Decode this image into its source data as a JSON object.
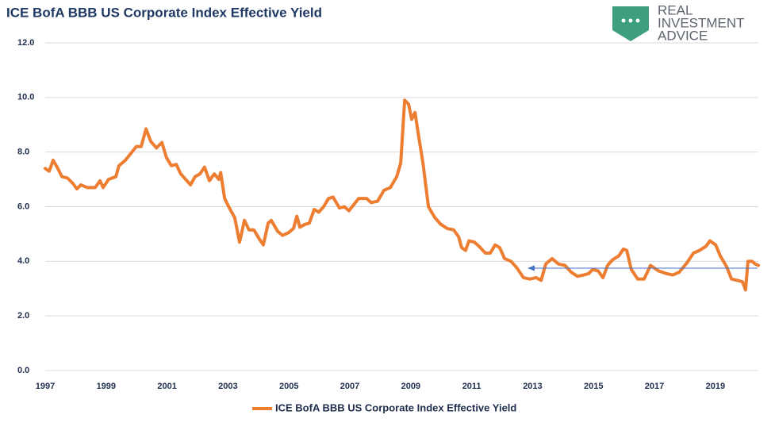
{
  "logo": {
    "line1": "REAL",
    "line2": "INVESTMENT",
    "line3": "ADVICE"
  },
  "chart_data": {
    "type": "line",
    "title": "ICE BofA BBB US Corporate Index Effective Yield",
    "x": [
      1997.0,
      1997.13,
      1997.26,
      1997.39,
      1997.55,
      1997.73,
      1997.91,
      1998.04,
      1998.17,
      1998.38,
      1998.64,
      1998.8,
      1998.9,
      1999.08,
      1999.32,
      1999.42,
      1999.63,
      1999.81,
      1999.99,
      2000.15,
      2000.31,
      2000.46,
      2000.65,
      2000.83,
      2000.98,
      2001.14,
      2001.3,
      2001.45,
      2001.61,
      2001.77,
      2001.92,
      2002.08,
      2002.23,
      2002.39,
      2002.55,
      2002.7,
      2002.76,
      2002.89,
      2003.07,
      2003.22,
      2003.38,
      2003.54,
      2003.69,
      2003.85,
      2004.01,
      2004.16,
      2004.32,
      2004.42,
      2004.63,
      2004.79,
      2004.99,
      2005.15,
      2005.26,
      2005.36,
      2005.52,
      2005.67,
      2005.83,
      2005.98,
      2006.14,
      2006.3,
      2006.45,
      2006.66,
      2006.82,
      2006.97,
      2007.29,
      2007.55,
      2007.7,
      2007.91,
      2008.12,
      2008.33,
      2008.54,
      2008.67,
      2008.8,
      2008.93,
      2009.03,
      2009.14,
      2009.27,
      2009.4,
      2009.58,
      2009.79,
      2009.99,
      2010.2,
      2010.41,
      2010.57,
      2010.67,
      2010.8,
      2010.91,
      2011.09,
      2011.24,
      2011.45,
      2011.61,
      2011.77,
      2011.92,
      2012.08,
      2012.29,
      2012.49,
      2012.7,
      2012.91,
      2013.12,
      2013.28,
      2013.43,
      2013.64,
      2013.85,
      2014.06,
      2014.27,
      2014.47,
      2014.68,
      2014.84,
      2014.97,
      2015.15,
      2015.31,
      2015.46,
      2015.62,
      2015.83,
      2015.98,
      2016.09,
      2016.24,
      2016.45,
      2016.66,
      2016.87,
      2017.13,
      2017.39,
      2017.6,
      2017.81,
      2018.07,
      2018.28,
      2018.48,
      2018.69,
      2018.82,
      2019.01,
      2019.16,
      2019.37,
      2019.53,
      2019.73,
      2019.89,
      2019.99,
      2020.07,
      2020.2,
      2020.31,
      2020.41
    ],
    "series": [
      {
        "name": "ICE BofA BBB US Corporate Index Effective Yield",
        "color": "#ed7d31",
        "values": [
          7.4,
          7.3,
          7.7,
          7.45,
          7.1,
          7.05,
          6.85,
          6.65,
          6.8,
          6.7,
          6.7,
          6.95,
          6.7,
          7.0,
          7.1,
          7.5,
          7.7,
          7.95,
          8.2,
          8.2,
          8.85,
          8.4,
          8.15,
          8.35,
          7.8,
          7.5,
          7.55,
          7.2,
          7.0,
          6.8,
          7.1,
          7.2,
          7.45,
          6.95,
          7.2,
          7.0,
          7.25,
          6.3,
          5.9,
          5.6,
          4.7,
          5.5,
          5.15,
          5.15,
          4.85,
          4.6,
          5.4,
          5.5,
          5.1,
          4.95,
          5.05,
          5.2,
          5.65,
          5.25,
          5.35,
          5.4,
          5.9,
          5.8,
          6.0,
          6.3,
          6.35,
          5.95,
          6.0,
          5.85,
          6.3,
          6.3,
          6.15,
          6.2,
          6.6,
          6.7,
          7.1,
          7.6,
          9.9,
          9.75,
          9.2,
          9.45,
          8.5,
          7.6,
          6.0,
          5.6,
          5.35,
          5.2,
          5.15,
          4.9,
          4.5,
          4.4,
          4.75,
          4.7,
          4.55,
          4.3,
          4.3,
          4.6,
          4.5,
          4.1,
          4.0,
          3.75,
          3.4,
          3.35,
          3.4,
          3.3,
          3.9,
          4.1,
          3.9,
          3.85,
          3.6,
          3.45,
          3.5,
          3.55,
          3.7,
          3.65,
          3.4,
          3.85,
          4.05,
          4.2,
          4.45,
          4.4,
          3.7,
          3.35,
          3.35,
          3.85,
          3.65,
          3.55,
          3.5,
          3.6,
          3.95,
          4.3,
          4.4,
          4.55,
          4.75,
          4.6,
          4.2,
          3.8,
          3.35,
          3.3,
          3.25,
          2.95,
          4.0,
          4.0,
          3.9,
          3.85
        ]
      }
    ],
    "xlim": [
      1997,
      2020.41
    ],
    "xticks": [
      1997,
      1999,
      2001,
      2003,
      2005,
      2007,
      2009,
      2011,
      2013,
      2015,
      2017,
      2019
    ],
    "ylim": [
      0,
      12
    ],
    "yticks": [
      {
        "value": 0,
        "label": "0.0"
      },
      {
        "value": 2,
        "label": "2.0"
      },
      {
        "value": 4,
        "label": "4.0"
      },
      {
        "value": 6,
        "label": "6.0"
      },
      {
        "value": 8,
        "label": "8.0"
      },
      {
        "value": 10,
        "label": "10.0"
      },
      {
        "value": 12,
        "label": "12.0"
      }
    ],
    "grid": true,
    "legend": "bottom"
  }
}
